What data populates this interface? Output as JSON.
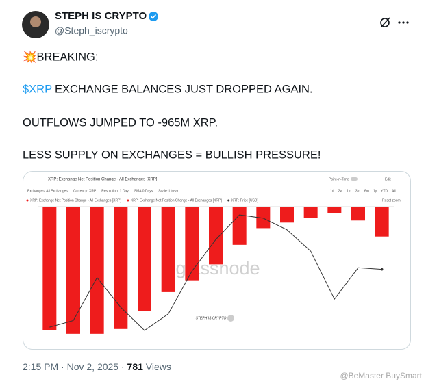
{
  "tweet": {
    "author": {
      "name": "STEPH IS CRYPTO",
      "handle": "@Steph_iscrypto"
    },
    "lines": [
      "💥BREAKING:",
      "EXCHANGE BALANCES JUST DROPPED AGAIN.",
      "OUTFLOWS JUMPED TO -965M XRP.",
      "LESS SUPPLY ON EXCHANGES = BULLISH PRESSURE!"
    ],
    "cashtag": "$XRP",
    "footer": {
      "time": "2:15 PM",
      "separator": "·",
      "date": "Nov 2, 2025",
      "views": "781",
      "views_label": "Views"
    },
    "watermark": "@BeMaster BuySmart"
  },
  "embed": {
    "title": "XRP: Exchange Net Position Change - All Exchanges [XRP]",
    "point_in_time": "Point-in-Time",
    "controls": [
      "Exchanges: All Exchanges",
      "Currency: XRP",
      "Resolution: 1 Day",
      "SMA 0 Days",
      "Scale: Linear"
    ],
    "ranges": [
      "1d",
      "2w",
      "1m",
      "3m",
      "6m",
      "1y",
      "YTD",
      "All"
    ],
    "edit": "Edit",
    "legend": [
      "XRP: Exchange Net Position Change - All Exchanges [XRP]",
      "XRP: Exchange Net Position Change - All Exchanges [XRP]",
      "XRP: Price [USD]"
    ],
    "reset": "Reset zoom",
    "logo": "glassnode",
    "badge": "STEPH IS CRYPTO",
    "bar_color": "#ee1c1c",
    "line_color": "#333333",
    "ylim": [
      -1400,
      0
    ],
    "y2lim": [
      2.0,
      2.8
    ],
    "bars": [
      -1312,
      -1348,
      -1348,
      -1297,
      -1105,
      -906,
      -781,
      -612,
      -405,
      -228,
      -169,
      -118,
      -66,
      -147,
      -317
    ],
    "price": [
      2.07,
      2.11,
      2.37,
      2.19,
      2.05,
      2.15,
      2.41,
      2.6,
      2.75,
      2.73,
      2.66,
      2.53,
      2.24,
      2.43,
      2.42
    ]
  }
}
